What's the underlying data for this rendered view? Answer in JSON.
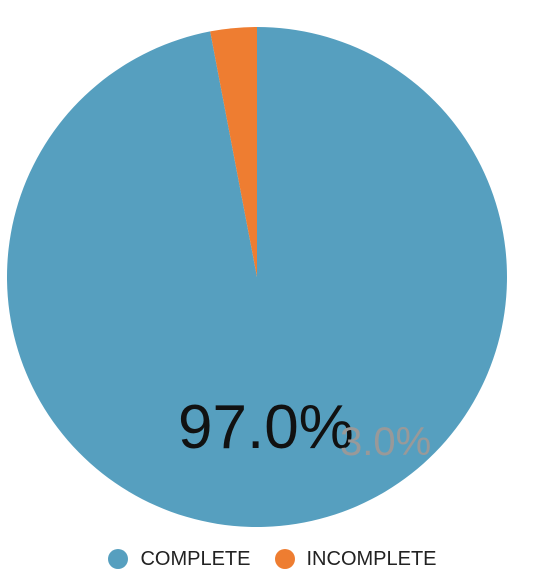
{
  "chart_data": {
    "type": "pie",
    "categories": [
      "COMPLETE",
      "INCOMPLETE"
    ],
    "values": [
      97.0,
      3.0
    ],
    "colors": [
      "#569fbf",
      "#ee7d31"
    ],
    "title": "",
    "legend_placement": "bottom",
    "center_label": "97.0%",
    "secondary_label": "3.0%"
  }
}
